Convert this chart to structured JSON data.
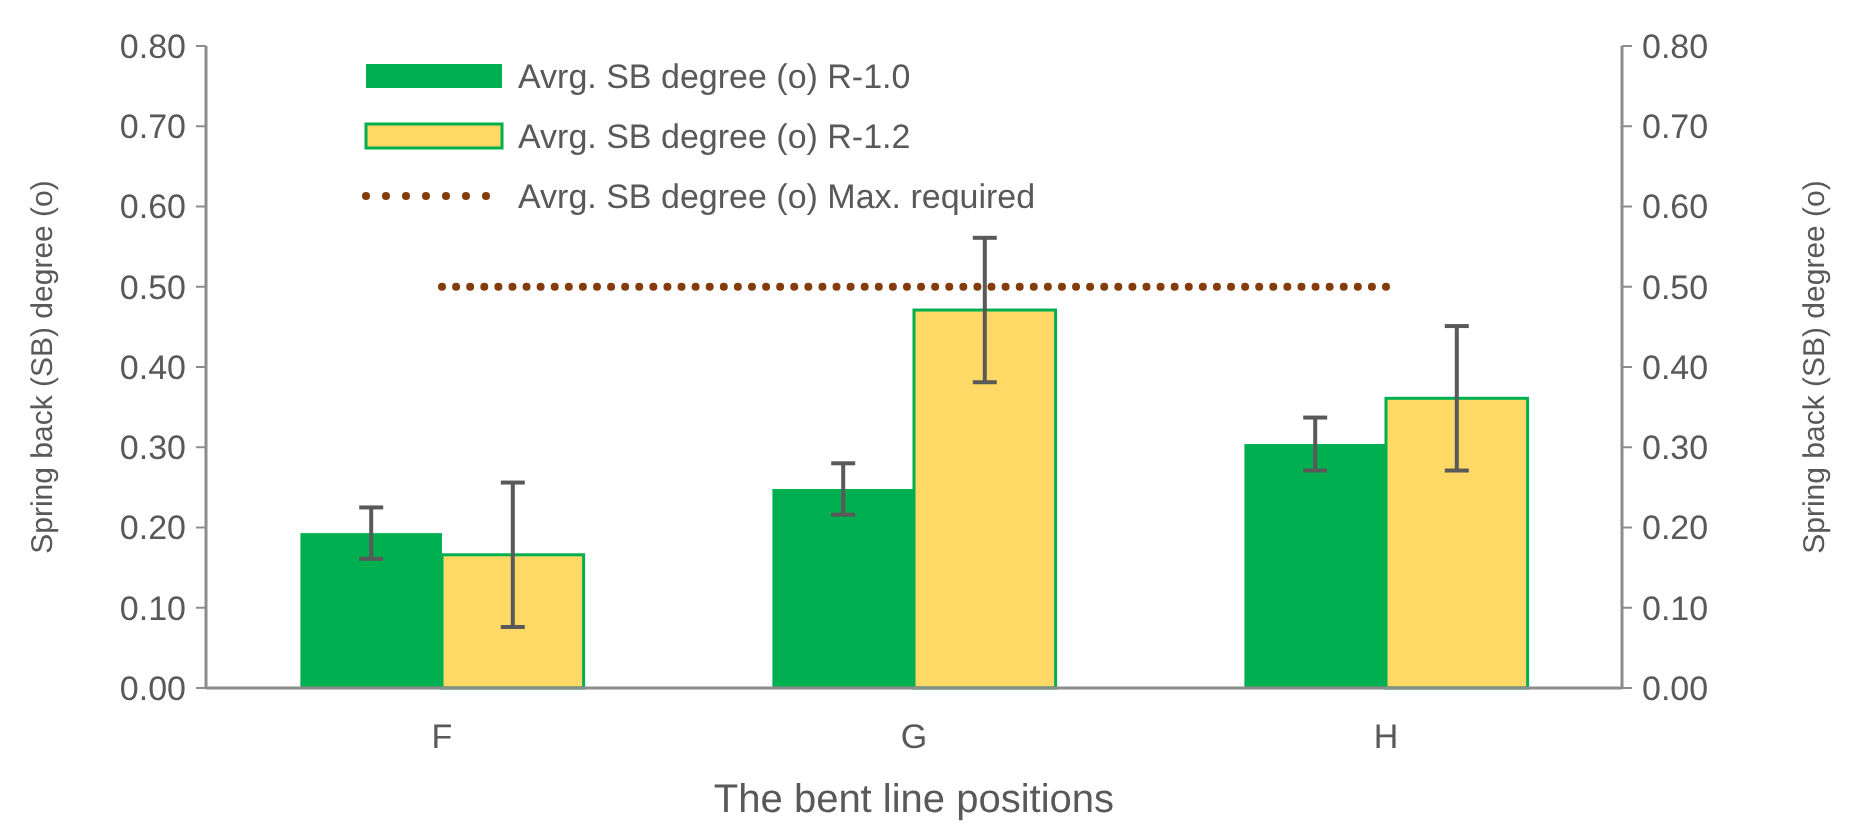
{
  "chart_data": {
    "type": "bar",
    "xlabel": "The bent line positions",
    "ylabel": "Spring back (SB) degree (o)",
    "y2label": "Spring back (SB) degree (o)",
    "categories": [
      "F",
      "G",
      "H"
    ],
    "series": [
      {
        "name": "Avrg. SB degree (o) R-1.0",
        "color": "#00b050",
        "values": [
          0.193,
          0.248,
          0.304
        ],
        "errors": [
          0.032,
          0.032,
          0.033
        ]
      },
      {
        "name": "Avrg. SB degree (o) R-1.2",
        "color": "#ffd966",
        "values": [
          0.166,
          0.471,
          0.361
        ],
        "errors": [
          0.09,
          0.09,
          0.09
        ]
      },
      {
        "name": "Avrg. SB degree (o) Max. required",
        "type": "line",
        "color": "#843c0c",
        "values": [
          0.5,
          0.5,
          0.5
        ],
        "line_style": "dotted"
      }
    ],
    "ylim": [
      0,
      0.8
    ],
    "yticks": [
      {
        "value": 0,
        "label": "0.00"
      },
      {
        "value": 0.1,
        "label": "0.10"
      },
      {
        "value": 0.2,
        "label": "0.20"
      },
      {
        "value": 0.3,
        "label": "0.30"
      },
      {
        "value": 0.4,
        "label": "0.40"
      },
      {
        "value": 0.5,
        "label": "0.50"
      },
      {
        "value": 0.6,
        "label": "0.60"
      },
      {
        "value": 0.7,
        "label": "0.70"
      },
      {
        "value": 0.8,
        "label": "0.80"
      }
    ],
    "y2lim": [
      0,
      0.8
    ],
    "y2ticks": [
      {
        "value": 0,
        "label": "0.00"
      },
      {
        "value": 0.1,
        "label": "0.10"
      },
      {
        "value": 0.2,
        "label": "0.20"
      },
      {
        "value": 0.3,
        "label": "0.30"
      },
      {
        "value": 0.4,
        "label": "0.40"
      },
      {
        "value": 0.5,
        "label": "0.50"
      },
      {
        "value": 0.6,
        "label": "0.60"
      },
      {
        "value": 0.7,
        "label": "0.70"
      },
      {
        "value": 0.8,
        "label": "0.80"
      }
    ],
    "grid": false,
    "legend": "top left"
  }
}
